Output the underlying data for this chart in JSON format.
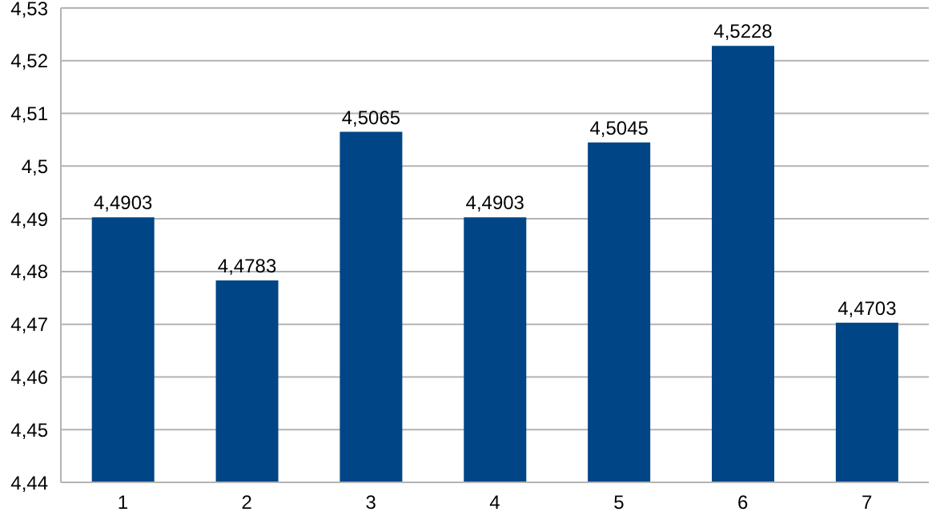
{
  "chart_data": {
    "type": "bar",
    "categories": [
      "1",
      "2",
      "3",
      "4",
      "5",
      "6",
      "7"
    ],
    "values": [
      4.4903,
      4.4783,
      4.5065,
      4.4903,
      4.5045,
      4.5228,
      4.4703
    ],
    "value_labels": [
      "4,4903",
      "4,4783",
      "4,5065",
      "4,4903",
      "4,5045",
      "4,5228",
      "4,4703"
    ],
    "color": "#004586",
    "ylim": [
      4.44,
      4.53
    ],
    "yticks": [
      {
        "value": 4.44,
        "label": "4,44"
      },
      {
        "value": 4.45,
        "label": "4,45"
      },
      {
        "value": 4.46,
        "label": "4,46"
      },
      {
        "value": 4.47,
        "label": "4,47"
      },
      {
        "value": 4.48,
        "label": "4,48"
      },
      {
        "value": 4.49,
        "label": "4,49"
      },
      {
        "value": 4.5,
        "label": "4,5"
      },
      {
        "value": 4.51,
        "label": "4,51"
      },
      {
        "value": 4.52,
        "label": "4,52"
      },
      {
        "value": 4.53,
        "label": "4,53"
      }
    ],
    "grid": "y",
    "legend": false
  }
}
